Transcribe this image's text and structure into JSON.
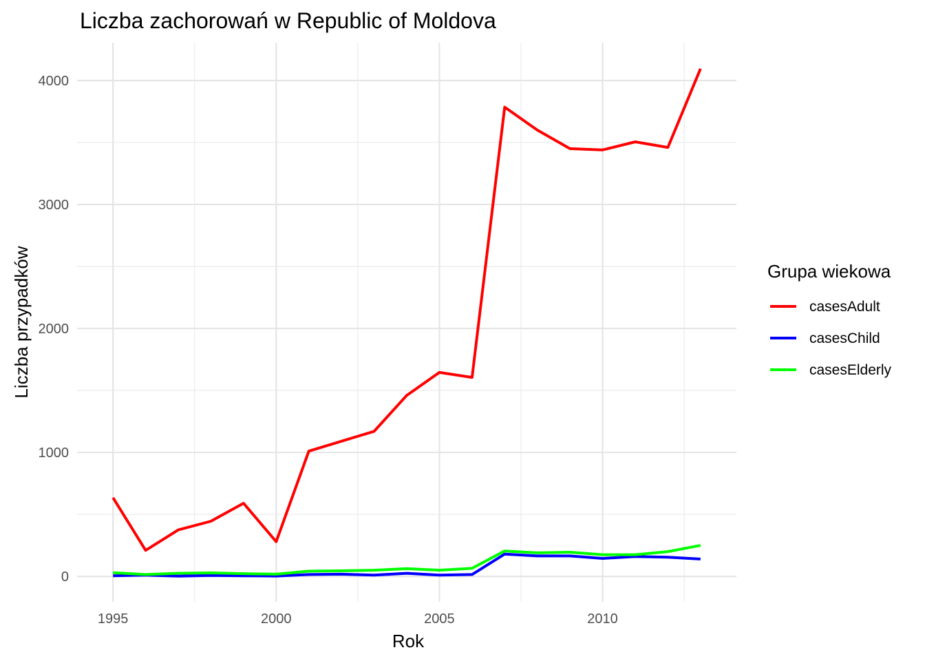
{
  "chart_data": {
    "type": "line",
    "title": "Liczba zachorowań w Republic of Moldova",
    "xlabel": "Rok",
    "ylabel": "Liczba przypadków",
    "x": [
      1995,
      1996,
      1997,
      1998,
      1999,
      2000,
      2001,
      2002,
      2003,
      2004,
      2005,
      2006,
      2007,
      2008,
      2009,
      2010,
      2011,
      2012,
      2013
    ],
    "xlim": [
      1993.9,
      2014.1
    ],
    "ylim": [
      -205,
      4305
    ],
    "x_ticks": [
      1995,
      2000,
      2005,
      2010
    ],
    "x_tick_labels": [
      "1995",
      "2000",
      "2005",
      "2010"
    ],
    "y_ticks": [
      0,
      1000,
      2000,
      3000,
      4000
    ],
    "y_tick_labels": [
      "0",
      "1000",
      "2000",
      "3000",
      "4000"
    ],
    "grid": true,
    "legend": {
      "title": "Grupa wiekowa",
      "placement": "right"
    },
    "series": [
      {
        "name": "casesAdult",
        "color": "#ff0000",
        "values": [
          635,
          210,
          375,
          445,
          590,
          280,
          1010,
          1090,
          1170,
          1460,
          1645,
          1605,
          3785,
          3600,
          3450,
          3440,
          3505,
          3460,
          4095
        ]
      },
      {
        "name": "casesChild",
        "color": "#0000ff",
        "values": [
          5,
          10,
          2,
          8,
          5,
          3,
          15,
          18,
          10,
          25,
          10,
          15,
          180,
          165,
          165,
          145,
          160,
          155,
          140
        ]
      },
      {
        "name": "casesElderly",
        "color": "#00ff00",
        "values": [
          30,
          15,
          25,
          28,
          22,
          18,
          42,
          45,
          50,
          62,
          50,
          65,
          205,
          190,
          195,
          175,
          175,
          200,
          250
        ]
      }
    ]
  }
}
